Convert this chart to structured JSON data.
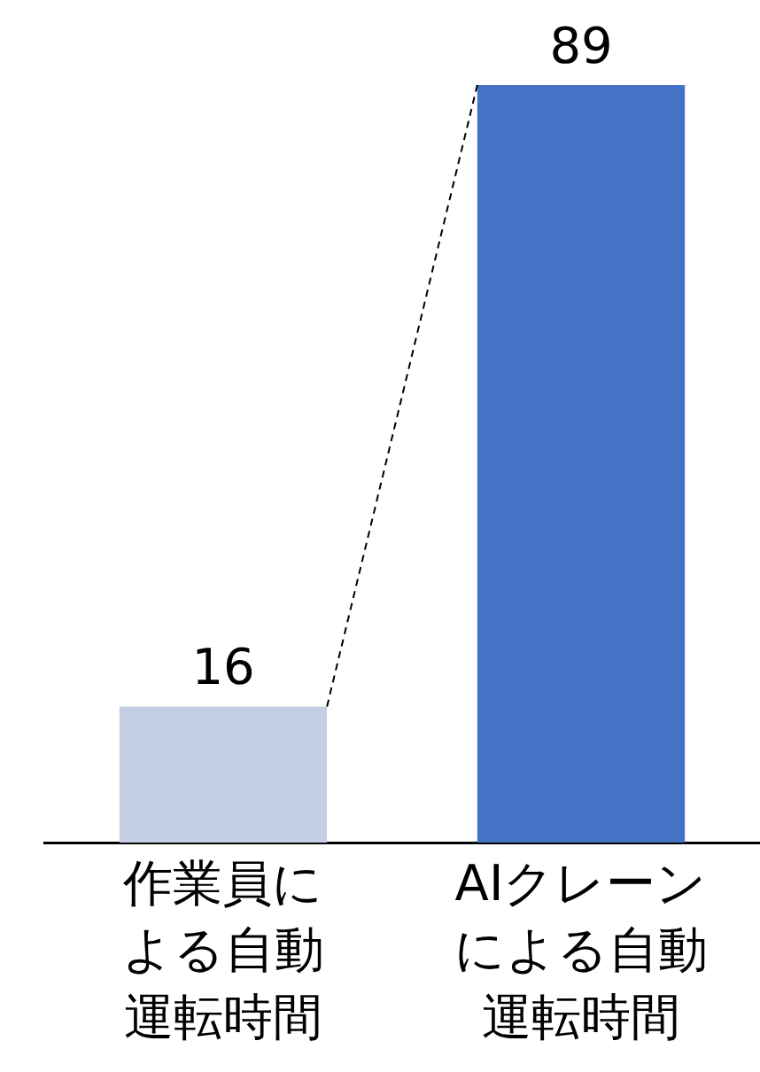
{
  "chart_data": {
    "type": "bar",
    "categories": [
      "作業員による自動運転時間",
      "AIクレーンによる自動運転時間"
    ],
    "values": [
      16,
      89
    ],
    "colors": [
      "#c5cfe3",
      "#4472c4"
    ],
    "data_labels": true,
    "grid": false,
    "legend": false,
    "tick_labels": "x"
  }
}
